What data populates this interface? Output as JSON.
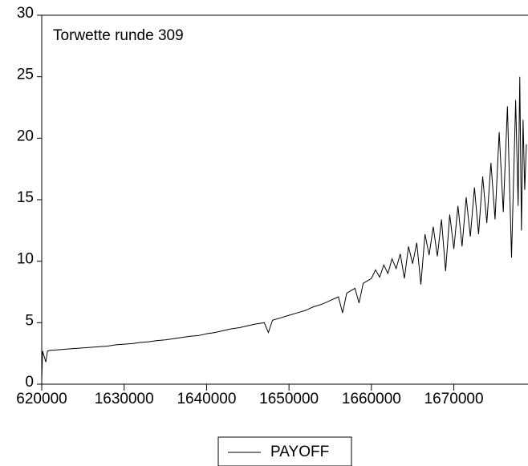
{
  "chart_data": {
    "type": "line",
    "annotation": "Torwette runde 309",
    "x": [
      1620000,
      1620100,
      1620500,
      1620700,
      1621000,
      1622000,
      1623000,
      1624000,
      1625000,
      1626000,
      1627000,
      1628000,
      1629000,
      1630000,
      1631000,
      1632000,
      1633000,
      1634000,
      1635000,
      1636000,
      1637000,
      1638000,
      1639000,
      1640000,
      1641000,
      1642000,
      1643000,
      1644000,
      1645000,
      1646000,
      1647000,
      1647500,
      1648000,
      1649000,
      1650000,
      1651000,
      1652000,
      1653000,
      1654000,
      1655000,
      1656000,
      1656500,
      1657000,
      1658000,
      1658500,
      1659000,
      1660000,
      1660500,
      1661000,
      1661500,
      1662000,
      1662500,
      1663000,
      1663500,
      1664000,
      1664500,
      1665000,
      1665500,
      1666000,
      1666500,
      1667000,
      1667500,
      1668000,
      1668500,
      1669000,
      1669500,
      1670000,
      1670500,
      1671000,
      1671500,
      1672000,
      1672500,
      1673000,
      1673500,
      1674000,
      1674500,
      1675000,
      1675500,
      1676000,
      1676500,
      1677000,
      1677500,
      1677800,
      1678000,
      1678200,
      1678400,
      1678600,
      1678800
    ],
    "series": [
      {
        "name": "PAYOFF",
        "color": "#000000",
        "values": [
          0.3,
          2.7,
          1.8,
          2.7,
          2.75,
          2.8,
          2.85,
          2.9,
          2.95,
          3.0,
          3.05,
          3.1,
          3.2,
          3.25,
          3.3,
          3.4,
          3.45,
          3.55,
          3.6,
          3.7,
          3.8,
          3.9,
          3.95,
          4.1,
          4.2,
          4.35,
          4.5,
          4.6,
          4.75,
          4.9,
          5.0,
          4.2,
          5.2,
          5.4,
          5.6,
          5.8,
          6.0,
          6.3,
          6.5,
          6.8,
          7.1,
          5.8,
          7.4,
          7.8,
          6.6,
          8.2,
          8.6,
          9.3,
          8.7,
          9.7,
          9.0,
          10.2,
          9.4,
          10.6,
          8.6,
          11.2,
          9.8,
          11.5,
          8.1,
          12.2,
          10.5,
          12.8,
          10.4,
          13.4,
          9.2,
          13.8,
          11.0,
          14.5,
          11.2,
          15.2,
          12.0,
          16.0,
          12.2,
          16.9,
          13.1,
          18.0,
          13.4,
          20.5,
          14.0,
          22.6,
          10.3,
          23.1,
          14.5,
          25.0,
          12.5,
          21.5,
          15.8,
          19.5
        ]
      }
    ],
    "xlim": [
      1620000,
      1678900
    ],
    "xticks": [
      {
        "value": 1620000,
        "label": "620000"
      },
      1630000,
      1640000,
      1650000,
      1660000,
      1670000
    ],
    "ylim": [
      0,
      30
    ],
    "yticks": [
      0,
      5,
      10,
      15,
      20,
      25,
      30
    ],
    "legend": "bottom"
  }
}
